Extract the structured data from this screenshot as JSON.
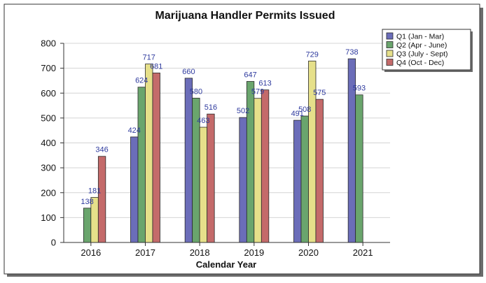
{
  "chart_data": {
    "type": "bar",
    "title": "Marijuana Handler Permits Issued",
    "xlabel": "Calendar Year",
    "ylabel": "",
    "ylim": [
      0,
      800
    ],
    "yticks": [
      0,
      100,
      200,
      300,
      400,
      500,
      600,
      700,
      800
    ],
    "categories": [
      "2016",
      "2017",
      "2018",
      "2019",
      "2020",
      "2021"
    ],
    "series": [
      {
        "name": "Q1 (Jan - Mar)",
        "color": "#6b6db9",
        "values": [
          null,
          424,
          660,
          502,
          491,
          738
        ],
        "labels": [
          "",
          "424",
          "660",
          "502",
          "491",
          "738"
        ]
      },
      {
        "name": "Q2 (Apr - June)",
        "color": "#6aa56d",
        "values": [
          138,
          624,
          580,
          647,
          508,
          593
        ],
        "labels": [
          "138",
          "624",
          "580",
          "647",
          "508",
          "593"
        ]
      },
      {
        "name": "Q3 (July - Sept)",
        "color": "#e6e08a",
        "values": [
          181,
          717,
          463,
          579,
          729,
          null
        ],
        "labels": [
          "181",
          "717",
          "463",
          "579",
          "729",
          ""
        ]
      },
      {
        "name": "Q4 (Oct - Dec)",
        "color": "#c46a6a",
        "values": [
          346,
          681,
          516,
          613,
          575,
          null
        ],
        "labels": [
          "346",
          "681",
          "516",
          "613",
          "575",
          ""
        ]
      }
    ],
    "grid": true,
    "legend_position": "top-right",
    "label_color": "#2e3a9e"
  }
}
